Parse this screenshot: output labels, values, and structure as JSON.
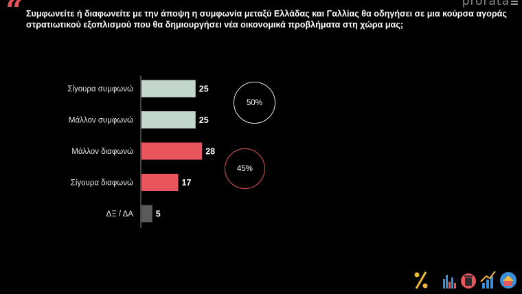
{
  "header": {
    "question": "Συμφωνείτε ή διαφωνείτε με την άποψη η συμφωνία μεταξύ Ελλάδας και Γαλλίας θα οδηγήσει σε μια κούρσα αγοράς στρατιωτικού εξοπλισμού που θα δημιουργήσει νέα οικονομικά προβλήματα στη χώρα μας;",
    "quote_glyph": "“",
    "logo_text": "prorata"
  },
  "summary": {
    "agree_total": "50%",
    "disagree_total": "45%"
  },
  "chart_data": {
    "type": "bar",
    "orientation": "horizontal",
    "categories": [
      "Σίγουρα συμφωνώ",
      "Μάλλον συμφωνώ",
      "Μάλλον διαφωνώ",
      "Σίγουρα διαφωνώ",
      "ΔΞ / ΔΑ"
    ],
    "values": [
      25,
      25,
      28,
      17,
      5
    ],
    "colors": [
      "#c3d6cb",
      "#c3d6cb",
      "#e8555c",
      "#e8555c",
      "#5a5a5a"
    ],
    "title": "",
    "xlabel": "",
    "ylabel": "",
    "grid": false
  },
  "colors": {
    "background": "#000000",
    "accent": "#e3545a",
    "agree": "#c3d6cb",
    "disagree": "#e8555c",
    "neutral": "#5a5a5a"
  },
  "footer": {
    "icons": [
      "percent-icon",
      "bar-chart-icon",
      "trash-bin-icon",
      "growth-chart-icon",
      "house-icon"
    ]
  }
}
